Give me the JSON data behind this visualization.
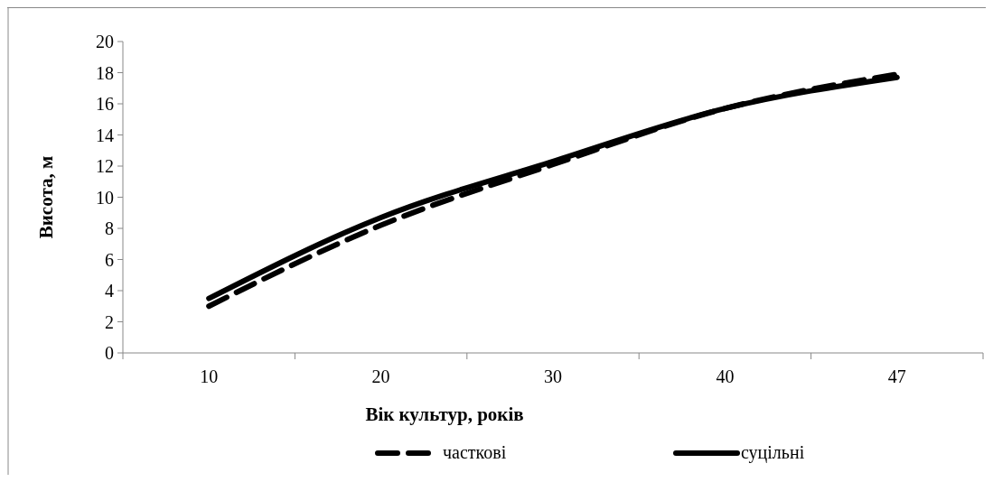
{
  "chart_data": {
    "type": "line",
    "xlabel": "Вік культур,  років",
    "ylabel": "Висота, м",
    "categories": [
      "10",
      "20",
      "30",
      "40",
      "47"
    ],
    "series": [
      {
        "name": "часткові",
        "color": "#000000",
        "line_style": "dashed",
        "values": [
          3.0,
          8.2,
          12.1,
          15.7,
          17.9
        ]
      },
      {
        "name": "суцільні",
        "color": "#000000",
        "line_style": "solid",
        "values": [
          3.5,
          8.7,
          12.3,
          15.7,
          17.7
        ]
      }
    ],
    "ylim": [
      0,
      20
    ],
    "yticks": [
      0,
      2,
      4,
      6,
      8,
      10,
      12,
      14,
      16,
      18,
      20
    ],
    "grid": false,
    "legend": "bottom",
    "marker": "none"
  }
}
